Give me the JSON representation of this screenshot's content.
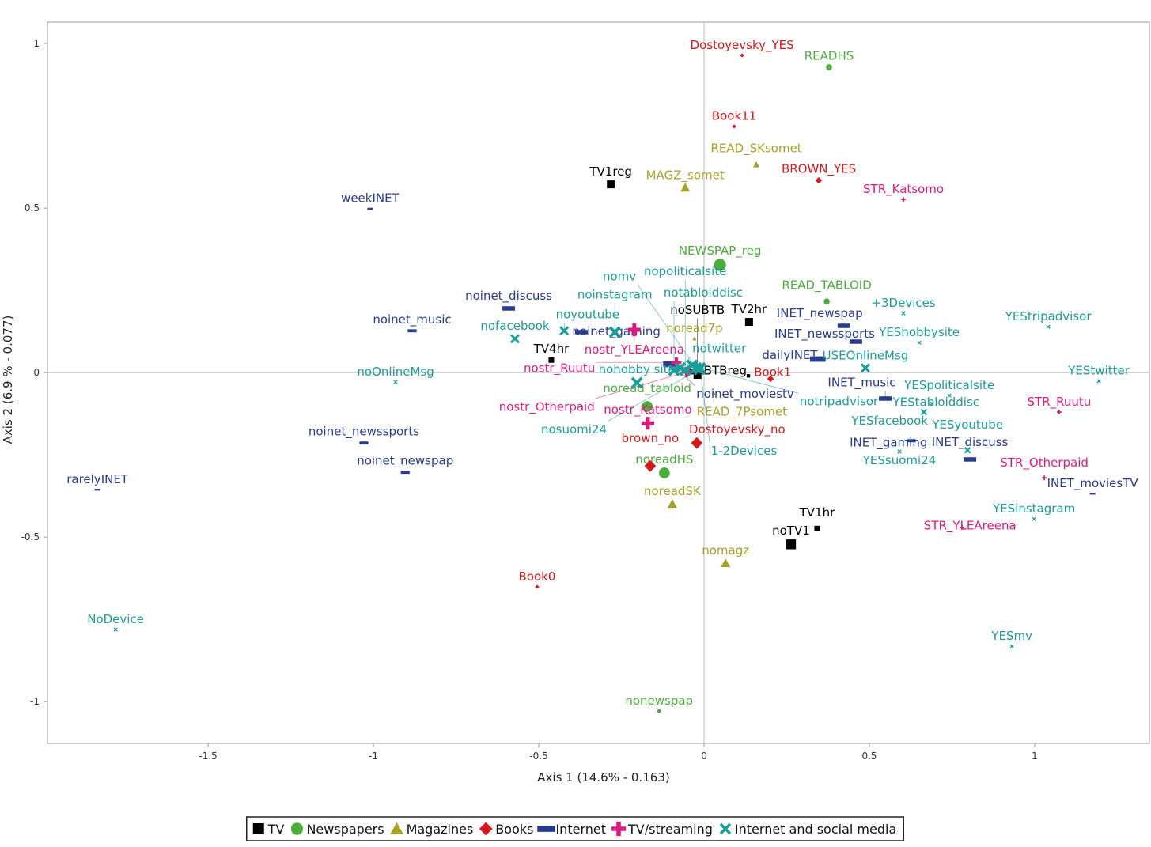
{
  "chart_data": {
    "type": "scatter",
    "xlabel": "Axis 1 (14.6% - 0.163)",
    "ylabel": "Axis 2 (6.9 % - 0.077)",
    "xlim": [
      -1.986,
      1.347
    ],
    "ylim": [
      -1.127,
      1.065
    ],
    "xticks": [
      -1.5,
      -1,
      -0.5,
      0,
      0.5,
      1
    ],
    "yticks": [
      -1,
      -0.5,
      0,
      0.5,
      1
    ],
    "grid": false,
    "zero_lines": true,
    "legend_position": "bottom",
    "series": [
      {
        "name": "TV",
        "marker": "square",
        "color": "#000000",
        "points": [
          {
            "label": "TV1reg",
            "x": -0.282,
            "y": 0.572,
            "size": 2
          },
          {
            "label": "TV2hr",
            "x": 0.136,
            "y": 0.154,
            "size": 2
          },
          {
            "label": "TV4hr",
            "x": -0.462,
            "y": 0.038,
            "size": 1.5
          },
          {
            "label": "SUBTBreg",
            "x": 0.134,
            "y": -0.01,
            "size": 1
          },
          {
            "label": "noSUBTB",
            "x": -0.02,
            "y": -0.007,
            "size": 2
          },
          {
            "label": "TV1hr",
            "x": 0.342,
            "y": -0.474,
            "size": 1.5
          },
          {
            "label": "noTV1",
            "x": 0.263,
            "y": -0.522,
            "size": 2.5
          }
        ]
      },
      {
        "name": "Newspapers",
        "marker": "circle",
        "color": "#4cae3a",
        "points": [
          {
            "label": "READHS",
            "x": 0.378,
            "y": 0.928,
            "size": 1.5
          },
          {
            "label": "NEWSPAP_reg",
            "x": 0.048,
            "y": 0.327,
            "size": 3
          },
          {
            "label": "READ_TABLOID",
            "x": 0.371,
            "y": 0.216,
            "size": 1.5
          },
          {
            "label": "noread_tabloid",
            "x": -0.172,
            "y": -0.103,
            "size": 2.5
          },
          {
            "label": "noreadHS",
            "x": -0.12,
            "y": -0.305,
            "size": 2.5
          },
          {
            "label": "nonewspap",
            "x": -0.136,
            "y": -1.029,
            "size": 1
          }
        ]
      },
      {
        "name": "Magazines",
        "marker": "triangle",
        "color": "#a9a027",
        "points": [
          {
            "label": "READ_SKsomet",
            "x": 0.158,
            "y": 0.632,
            "size": 1.5
          },
          {
            "label": "MAGZ_somet",
            "x": -0.057,
            "y": 0.562,
            "size": 2
          },
          {
            "label": "noread7p",
            "x": -0.029,
            "y": 0.103,
            "size": 1
          },
          {
            "label": "READ_7Psomet",
            "x": 0.029,
            "y": -0.063,
            "size": 1
          },
          {
            "label": "noreadSK",
            "x": -0.096,
            "y": -0.399,
            "size": 2
          },
          {
            "label": "nomagz",
            "x": 0.065,
            "y": -0.579,
            "size": 2
          }
        ]
      },
      {
        "name": "Books",
        "marker": "diamond",
        "color": "#d7191c",
        "points": [
          {
            "label": "Dostoyevsky_YES",
            "x": 0.115,
            "y": 0.964,
            "size": 1
          },
          {
            "label": "Book11",
            "x": 0.091,
            "y": 0.748,
            "size": 1
          },
          {
            "label": "BROWN_YES",
            "x": 0.347,
            "y": 0.584,
            "size": 1.5
          },
          {
            "label": "Book1",
            "x": 0.201,
            "y": -0.019,
            "size": 1.5
          },
          {
            "label": "Dostoyevsky_no",
            "x": -0.022,
            "y": -0.214,
            "size": 2.5
          },
          {
            "label": "brown_no",
            "x": -0.163,
            "y": -0.284,
            "size": 2.5
          },
          {
            "label": "Book0",
            "x": -0.505,
            "y": -0.651,
            "size": 1
          }
        ]
      },
      {
        "name": "Internet",
        "marker": "bar",
        "color": "#283b8f",
        "points": [
          {
            "label": "weekINET",
            "x": -1.01,
            "y": 0.498,
            "size": 1
          },
          {
            "label": "noinet_discuss",
            "x": -0.591,
            "y": 0.195,
            "size": 2
          },
          {
            "label": "noinet_music",
            "x": -0.883,
            "y": 0.127,
            "size": 1.5
          },
          {
            "label": "noinet_gaming",
            "x": -0.371,
            "y": 0.123,
            "size": 2
          },
          {
            "label": "noinet_moviestv",
            "x": -0.1,
            "y": 0.026,
            "size": 2.5
          },
          {
            "label": "INET_newspap",
            "x": 0.423,
            "y": 0.142,
            "size": 2
          },
          {
            "label": "INET_newssports",
            "x": 0.459,
            "y": 0.094,
            "size": 2
          },
          {
            "label": "dailyINET",
            "x": 0.344,
            "y": 0.041,
            "size": 2.5
          },
          {
            "label": "INET_music",
            "x": 0.548,
            "y": -0.079,
            "size": 2
          },
          {
            "label": "INET_gaming",
            "x": 0.627,
            "y": -0.207,
            "size": 1.5
          },
          {
            "label": "INET_discuss",
            "x": 0.804,
            "y": -0.264,
            "size": 2
          },
          {
            "label": "INET_moviesTV",
            "x": 1.175,
            "y": -0.368,
            "size": 1
          },
          {
            "label": "noinet_newssports",
            "x": -1.029,
            "y": -0.214,
            "size": 1.5
          },
          {
            "label": "noinet_newspap",
            "x": -0.904,
            "y": -0.303,
            "size": 1.5
          },
          {
            "label": "rarelyINET",
            "x": -1.835,
            "y": -0.356,
            "size": 1
          }
        ]
      },
      {
        "name": "TV/streaming",
        "marker": "plus",
        "color": "#e0197d",
        "points": [
          {
            "label": "STR_Katsomo",
            "x": 0.603,
            "y": 0.526,
            "size": 1
          },
          {
            "label": "nostr_YLEAreena",
            "x": -0.211,
            "y": 0.13,
            "size": 2.5
          },
          {
            "label": "nostr_Ruutu",
            "x": -0.084,
            "y": 0.031,
            "size": 2
          },
          {
            "label": "nostr_Otherpaid",
            "x": -0.053,
            "y": 0.002,
            "size": 2
          },
          {
            "label": "nostr_Katsomo",
            "x": -0.17,
            "y": -0.154,
            "size": 2.5
          },
          {
            "label": "STR_Ruutu",
            "x": 1.074,
            "y": -0.12,
            "size": 1
          },
          {
            "label": "STR_Otherpaid",
            "x": 1.029,
            "y": -0.32,
            "size": 1
          },
          {
            "label": "STR_YLEAreena",
            "x": 0.78,
            "y": -0.471,
            "size": 1
          }
        ]
      },
      {
        "name": "Internet and social media",
        "marker": "x",
        "color": "#1a9e9a",
        "points": [
          {
            "label": "noinstagram",
            "x": -0.27,
            "y": 0.123,
            "size": 2.5
          },
          {
            "label": "noyoutube",
            "x": -0.423,
            "y": 0.127,
            "size": 2
          },
          {
            "label": "nofacebook",
            "x": -0.572,
            "y": 0.103,
            "size": 2
          },
          {
            "label": "noOnlineMsg",
            "x": -0.933,
            "y": -0.029,
            "size": 1
          },
          {
            "label": "nohobby site",
            "x": -0.203,
            "y": -0.031,
            "size": 2.5
          },
          {
            "label": "notabloiddisc",
            "x": -0.091,
            "y": 0.007,
            "size": 2.5
          },
          {
            "label": "notwitter",
            "x": -0.072,
            "y": 0.014,
            "size": 2.5
          },
          {
            "label": "notripadvisor",
            "x": -0.036,
            "y": 0.022,
            "size": 2.5
          },
          {
            "label": "nomv",
            "x": -0.024,
            "y": 0.014,
            "size": 2.5
          },
          {
            "label": "1-2Devices",
            "x": -0.012,
            "y": 0.014,
            "size": 2.5
          },
          {
            "label": "nosuomi24",
            "x": -0.014,
            "y": 0.01,
            "size": 2.5
          },
          {
            "label": "nopoliticalsite",
            "x": -0.057,
            "y": 0.007,
            "size": 2.5
          },
          {
            "label": "USEOnlineMsg",
            "x": 0.488,
            "y": 0.014,
            "size": 2
          },
          {
            "label": "+3Devices",
            "x": 0.603,
            "y": 0.18,
            "size": 1
          },
          {
            "label": "YEStripadvisor",
            "x": 1.041,
            "y": 0.139,
            "size": 1
          },
          {
            "label": "YEShobbysite",
            "x": 0.651,
            "y": 0.091,
            "size": 1
          },
          {
            "label": "YEStwitter",
            "x": 1.194,
            "y": -0.026,
            "size": 1
          },
          {
            "label": "YESpoliticalsite",
            "x": 0.742,
            "y": -0.07,
            "size": 1
          },
          {
            "label": "YEStabloiddisc",
            "x": 0.689,
            "y": -0.094,
            "size": 1
          },
          {
            "label": "YESfacebook",
            "x": 0.665,
            "y": -0.12,
            "size": 1.5
          },
          {
            "label": "YESyoutube",
            "x": 0.797,
            "y": -0.236,
            "size": 1.5
          },
          {
            "label": "YESsuomi24",
            "x": 0.591,
            "y": -0.24,
            "size": 1
          },
          {
            "label": "YESinstagram",
            "x": 0.998,
            "y": -0.445,
            "size": 1
          },
          {
            "label": "YESmv",
            "x": 0.931,
            "y": -0.832,
            "size": 1
          },
          {
            "label": "NoDevice",
            "x": -1.78,
            "y": -0.781,
            "size": 1
          }
        ]
      }
    ]
  }
}
